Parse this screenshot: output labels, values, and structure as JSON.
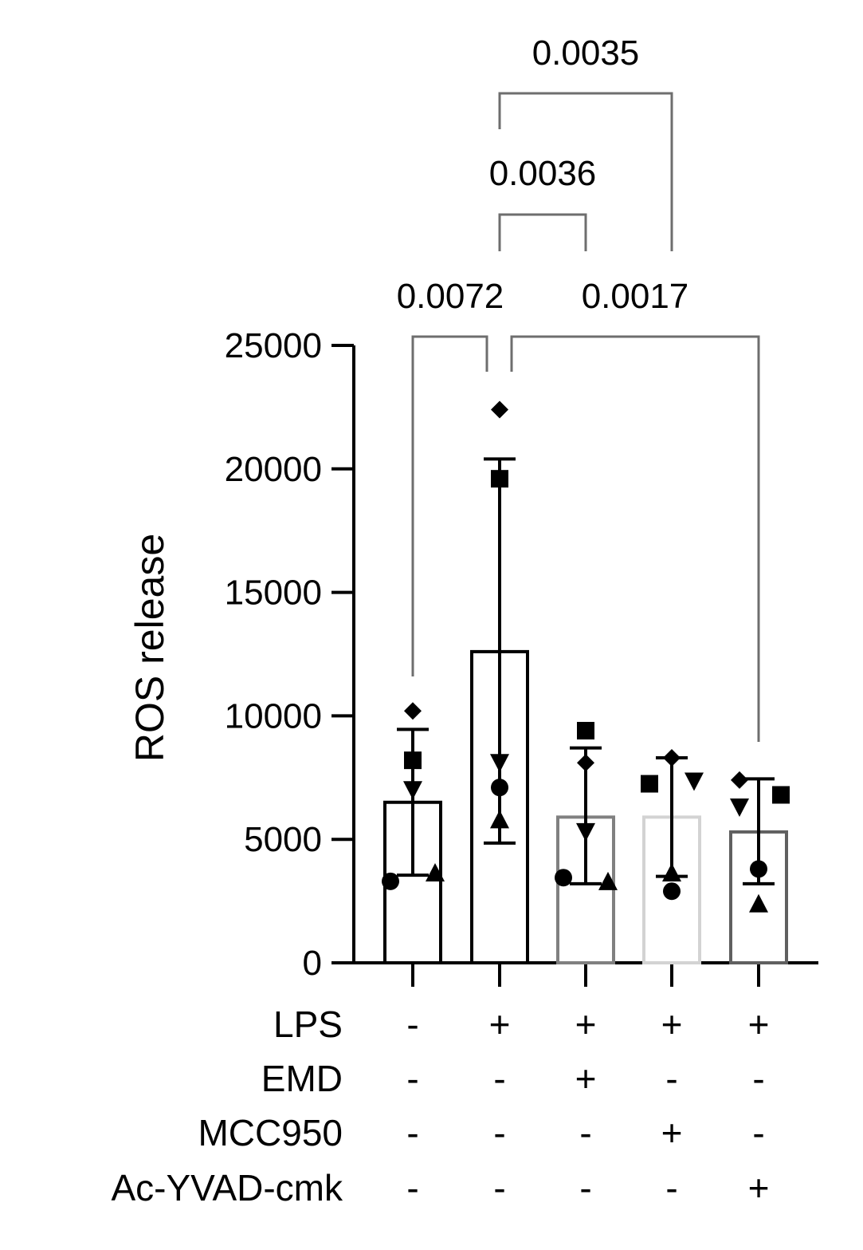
{
  "chart_data": {
    "type": "bar",
    "ylabel": "ROS release",
    "ylim": [
      0,
      25000
    ],
    "yticks": [
      0,
      5000,
      10000,
      15000,
      20000,
      25000
    ],
    "bar_edge_colors": [
      "#000000",
      "#000000",
      "#808080",
      "#d3d3d3",
      "#606060"
    ],
    "groups": [
      {
        "mean": 6500,
        "sd_upper": 9450,
        "sd_lower": 3550,
        "points": [
          {
            "marker": "diamond",
            "value": 10200,
            "offset": 0
          },
          {
            "marker": "square",
            "value": 8200,
            "offset": 0
          },
          {
            "marker": "triangle-down",
            "value": 7000,
            "offset": 0
          },
          {
            "marker": "triangle-up",
            "value": 3650,
            "offset": 0.35
          },
          {
            "marker": "circle",
            "value": 3300,
            "offset": -0.35
          }
        ]
      },
      {
        "mean": 12600,
        "sd_upper": 20400,
        "sd_lower": 4850,
        "points": [
          {
            "marker": "diamond",
            "value": 22400,
            "offset": 0
          },
          {
            "marker": "square",
            "value": 19600,
            "offset": 0
          },
          {
            "marker": "triangle-down",
            "value": 8100,
            "offset": 0
          },
          {
            "marker": "circle",
            "value": 7100,
            "offset": 0
          },
          {
            "marker": "triangle-up",
            "value": 5800,
            "offset": 0
          }
        ]
      },
      {
        "mean": 5900,
        "sd_upper": 8700,
        "sd_lower": 3200,
        "points": [
          {
            "marker": "square",
            "value": 9400,
            "offset": 0
          },
          {
            "marker": "diamond",
            "value": 8100,
            "offset": 0
          },
          {
            "marker": "triangle-down",
            "value": 5300,
            "offset": 0
          },
          {
            "marker": "circle",
            "value": 3450,
            "offset": -0.35
          },
          {
            "marker": "triangle-up",
            "value": 3300,
            "offset": 0.35
          }
        ]
      },
      {
        "mean": 5900,
        "sd_upper": 8300,
        "sd_lower": 3500,
        "points": [
          {
            "marker": "diamond",
            "value": 8300,
            "offset": 0
          },
          {
            "marker": "triangle-down",
            "value": 7350,
            "offset": 0.35
          },
          {
            "marker": "square",
            "value": 7250,
            "offset": -0.35
          },
          {
            "marker": "triangle-up",
            "value": 3650,
            "offset": 0
          },
          {
            "marker": "circle",
            "value": 2900,
            "offset": 0
          }
        ]
      },
      {
        "mean": 5300,
        "sd_upper": 7450,
        "sd_lower": 3200,
        "points": [
          {
            "marker": "diamond",
            "value": 7400,
            "offset": -0.3
          },
          {
            "marker": "square",
            "value": 6800,
            "offset": 0.35
          },
          {
            "marker": "triangle-down",
            "value": 6300,
            "offset": -0.3
          },
          {
            "marker": "circle",
            "value": 3800,
            "offset": 0
          },
          {
            "marker": "triangle-up",
            "value": 2400,
            "offset": 0
          }
        ]
      }
    ],
    "comparisons": [
      {
        "from": 0,
        "to": 1,
        "p": "0.0072"
      },
      {
        "from": 1,
        "to": 4,
        "p": "0.0017"
      },
      {
        "from": 1,
        "to": 2,
        "p": "0.0036"
      },
      {
        "from": 1,
        "to": 3,
        "p": "0.0035"
      }
    ],
    "conditions": [
      {
        "name": "LPS",
        "signs": [
          "-",
          "+",
          "+",
          "+",
          "+"
        ]
      },
      {
        "name": "EMD",
        "signs": [
          "-",
          "-",
          "+",
          "-",
          "-"
        ]
      },
      {
        "name": "MCC950",
        "signs": [
          "-",
          "-",
          "-",
          "+",
          "-"
        ]
      },
      {
        "name": "Ac-YVAD-cmk",
        "signs": [
          "-",
          "-",
          "-",
          "-",
          "+"
        ]
      }
    ]
  }
}
